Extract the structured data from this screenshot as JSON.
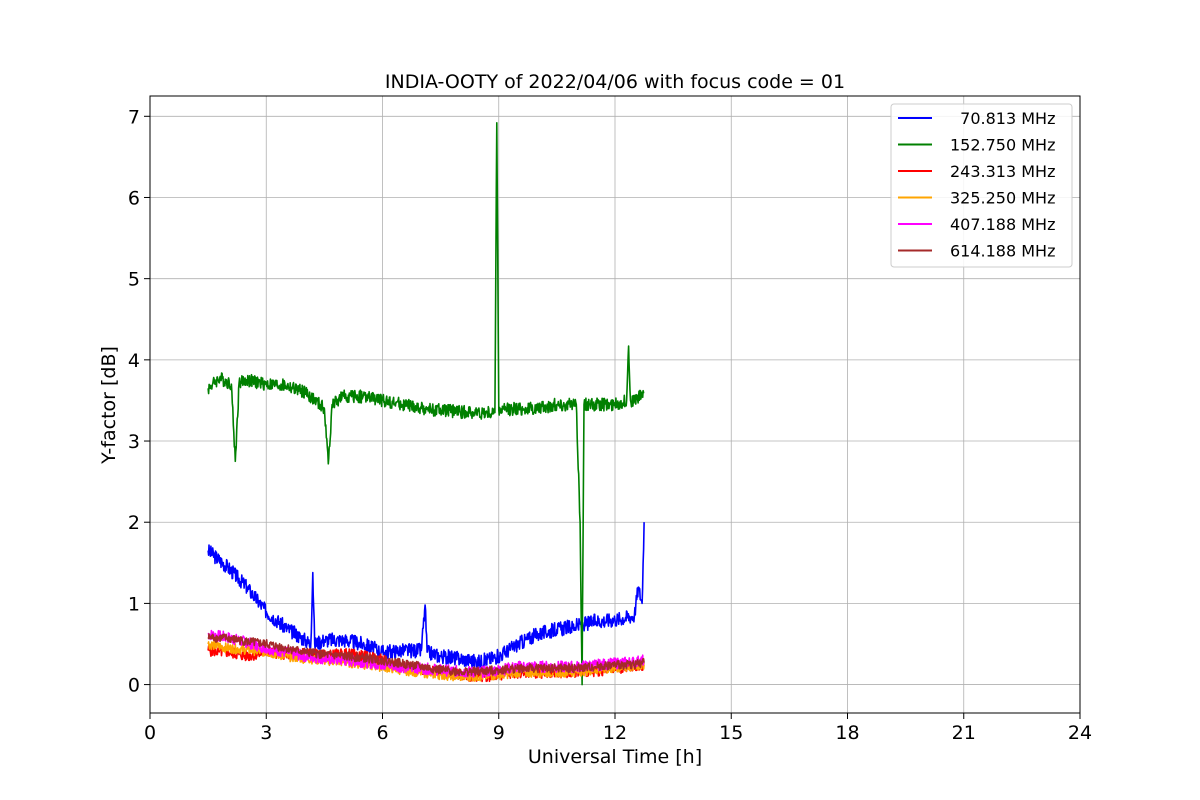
{
  "chart_data": {
    "type": "line",
    "title": "INDIA-OOTY of 2022/04/06 with focus code = 01",
    "xlabel": "Universal Time [h]",
    "ylabel": "Y-factor [dB]",
    "xlim": [
      0,
      24
    ],
    "ylim": [
      -0.35,
      7.25
    ],
    "xticks": [
      0,
      3,
      6,
      9,
      12,
      15,
      18,
      21,
      24
    ],
    "yticks": [
      0,
      1,
      2,
      3,
      4,
      5,
      6,
      7
    ],
    "grid": true,
    "legend_position": "top-right",
    "series": [
      {
        "name": "  70.813 MHz",
        "color": "#0000ff",
        "x": [
          1.5,
          2.0,
          2.5,
          3.0,
          3.5,
          4.0,
          4.15,
          4.2,
          4.25,
          4.5,
          5.0,
          5.5,
          6.0,
          6.5,
          7.0,
          7.1,
          7.15,
          7.5,
          8.0,
          8.5,
          9.0,
          9.5,
          10.0,
          10.5,
          11.0,
          11.5,
          12.0,
          12.5,
          12.6,
          12.7,
          12.75
        ],
        "y": [
          1.65,
          1.45,
          1.2,
          0.9,
          0.7,
          0.55,
          0.5,
          1.38,
          0.5,
          0.55,
          0.55,
          0.5,
          0.4,
          0.42,
          0.42,
          0.98,
          0.4,
          0.35,
          0.32,
          0.28,
          0.35,
          0.5,
          0.62,
          0.68,
          0.72,
          0.78,
          0.8,
          0.85,
          1.2,
          1.0,
          2.0
        ]
      },
      {
        "name": "152.750 MHz",
        "color": "#008000",
        "x": [
          1.5,
          1.8,
          2.1,
          2.2,
          2.3,
          2.5,
          3.0,
          3.5,
          4.0,
          4.5,
          4.6,
          4.7,
          5.0,
          5.5,
          6.0,
          6.5,
          7.0,
          7.5,
          8.0,
          8.5,
          8.9,
          8.95,
          9.0,
          9.5,
          10.0,
          10.5,
          11.0,
          11.1,
          11.15,
          11.2,
          11.5,
          12.0,
          12.3,
          12.35,
          12.4,
          12.5,
          12.75
        ],
        "y": [
          3.65,
          3.78,
          3.7,
          2.75,
          3.72,
          3.75,
          3.7,
          3.68,
          3.6,
          3.4,
          2.72,
          3.45,
          3.55,
          3.55,
          3.5,
          3.45,
          3.4,
          3.38,
          3.36,
          3.35,
          3.35,
          6.92,
          3.38,
          3.4,
          3.4,
          3.45,
          3.45,
          2.0,
          0.0,
          3.45,
          3.45,
          3.45,
          3.5,
          4.17,
          3.5,
          3.5,
          3.6
        ]
      },
      {
        "name": "243.313 MHz",
        "color": "#ff0000",
        "x": [
          1.5,
          2.0,
          2.5,
          3.0,
          3.5,
          4.0,
          4.5,
          5.0,
          5.5,
          6.0,
          6.5,
          7.0,
          7.5,
          8.0,
          8.5,
          9.0,
          9.5,
          10.0,
          10.5,
          11.0,
          11.5,
          12.0,
          12.5,
          12.75
        ],
        "y": [
          0.42,
          0.4,
          0.35,
          0.4,
          0.38,
          0.4,
          0.35,
          0.38,
          0.35,
          0.3,
          0.22,
          0.2,
          0.15,
          0.12,
          0.1,
          0.12,
          0.15,
          0.15,
          0.15,
          0.16,
          0.17,
          0.2,
          0.22,
          0.25
        ]
      },
      {
        "name": "325.250 MHz",
        "color": "#ffa500",
        "x": [
          1.5,
          2.0,
          2.5,
          3.0,
          3.5,
          4.0,
          4.5,
          5.0,
          5.5,
          6.0,
          6.5,
          7.0,
          7.5,
          8.0,
          8.5,
          9.0,
          9.5,
          10.0,
          10.5,
          11.0,
          11.5,
          12.0,
          12.5,
          12.75
        ],
        "y": [
          0.5,
          0.45,
          0.43,
          0.4,
          0.35,
          0.32,
          0.3,
          0.28,
          0.25,
          0.22,
          0.18,
          0.15,
          0.12,
          0.1,
          0.1,
          0.12,
          0.15,
          0.15,
          0.15,
          0.16,
          0.18,
          0.2,
          0.22,
          0.25
        ]
      },
      {
        "name": "407.188 MHz",
        "color": "#ff00ff",
        "x": [
          1.5,
          2.0,
          2.5,
          3.0,
          3.5,
          4.0,
          4.5,
          5.0,
          5.5,
          6.0,
          6.5,
          7.0,
          7.5,
          8.0,
          8.5,
          9.0,
          9.5,
          10.0,
          10.5,
          11.0,
          11.5,
          12.0,
          12.5,
          12.75
        ],
        "y": [
          0.62,
          0.58,
          0.52,
          0.45,
          0.4,
          0.35,
          0.32,
          0.3,
          0.28,
          0.25,
          0.22,
          0.2,
          0.18,
          0.16,
          0.15,
          0.18,
          0.22,
          0.22,
          0.22,
          0.22,
          0.24,
          0.26,
          0.28,
          0.3
        ]
      },
      {
        "name": "614.188 MHz",
        "color": "#a52a2a",
        "x": [
          1.5,
          2.0,
          2.5,
          3.0,
          3.5,
          4.0,
          4.5,
          5.0,
          5.5,
          6.0,
          6.5,
          7.0,
          7.5,
          8.0,
          8.5,
          9.0,
          9.5,
          10.0,
          10.5,
          11.0,
          11.5,
          12.0,
          12.5,
          12.75
        ],
        "y": [
          0.58,
          0.57,
          0.53,
          0.5,
          0.45,
          0.4,
          0.37,
          0.35,
          0.33,
          0.3,
          0.26,
          0.22,
          0.18,
          0.16,
          0.16,
          0.18,
          0.2,
          0.2,
          0.2,
          0.2,
          0.22,
          0.24,
          0.25,
          0.27
        ]
      }
    ]
  }
}
